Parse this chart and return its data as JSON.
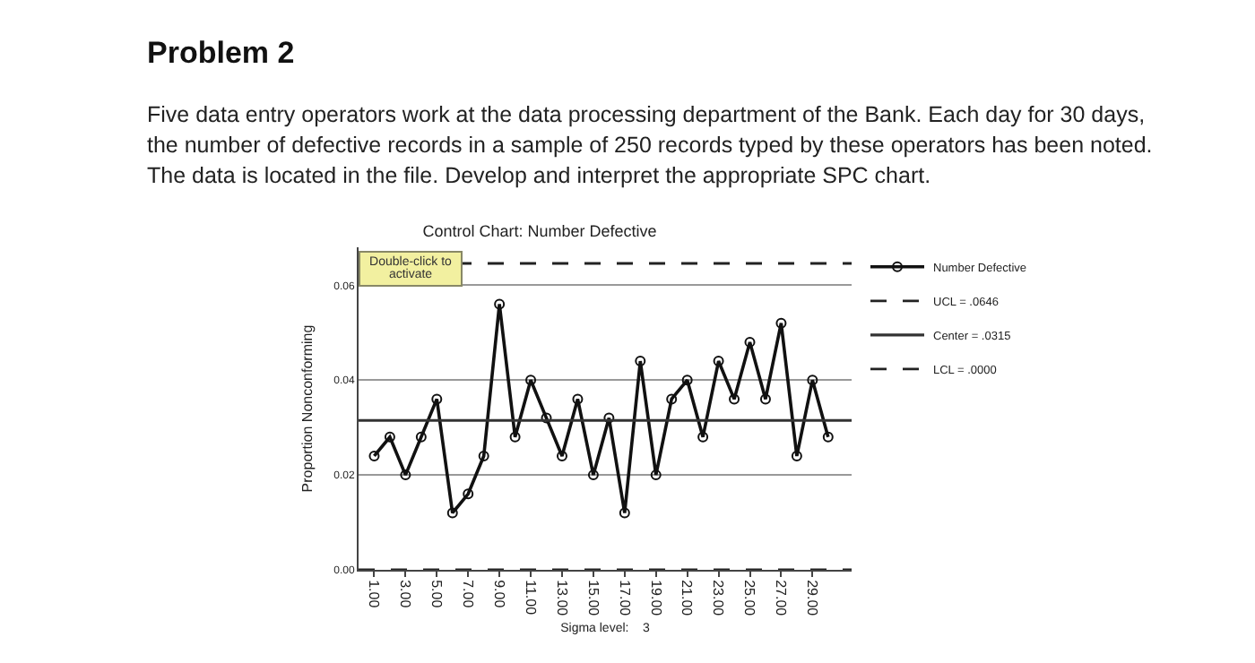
{
  "chart_data": {
    "type": "line",
    "title": "Control Chart: Number Defective",
    "ylabel": "Proportion Nonconforming",
    "xlabel": "Sigma level:    3",
    "annotations": [
      "Problem 2",
      "Five data entry operators work at the data processing department of the Bank. Each day for 30 days, the number of defective records in a sample of 250 records typed by these operators has been noted. The data is located in the file. Develop and interpret the appropriate SPC chart.",
      "Double-click to activate"
    ],
    "x": [
      1,
      2,
      3,
      4,
      5,
      6,
      7,
      8,
      9,
      10,
      11,
      12,
      13,
      14,
      15,
      16,
      17,
      18,
      19,
      20,
      21,
      22,
      23,
      24,
      25,
      26,
      27,
      28,
      29,
      30
    ],
    "series": [
      {
        "name": "Number Defective",
        "color": "#111111",
        "values": [
          0.024,
          0.028,
          0.02,
          0.028,
          0.036,
          0.012,
          0.016,
          0.024,
          0.056,
          0.028,
          0.04,
          0.032,
          0.024,
          0.036,
          0.02,
          0.032,
          0.012,
          0.044,
          0.02,
          0.036,
          0.04,
          0.028,
          0.044,
          0.036,
          0.048,
          0.036,
          0.052,
          0.024,
          0.04,
          0.028
        ]
      }
    ],
    "ref_lines": [
      {
        "axis": "y",
        "value": 0.0646,
        "label": "UCL = .0646",
        "color": "#222222",
        "line_style": "dashed"
      },
      {
        "axis": "y",
        "value": 0.0315,
        "label": "Center = .0315",
        "color": "#333333",
        "line_style": "solid"
      },
      {
        "axis": "y",
        "value": 0,
        "label": "LCL = .0000",
        "color": "#222222",
        "line_style": "dashed"
      }
    ],
    "xlim": [
      0,
      31.5
    ],
    "xticks": [
      {
        "value": 1,
        "label": "1.00"
      },
      {
        "value": 3,
        "label": "3.00"
      },
      {
        "value": 5,
        "label": "5.00"
      },
      {
        "value": 7,
        "label": "7.00"
      },
      {
        "value": 9,
        "label": "9.00"
      },
      {
        "value": 11,
        "label": "11.00"
      },
      {
        "value": 13,
        "label": "13.00"
      },
      {
        "value": 15,
        "label": "15.00"
      },
      {
        "value": 17,
        "label": "17.00"
      },
      {
        "value": 19,
        "label": "19.00"
      },
      {
        "value": 21,
        "label": "21.00"
      },
      {
        "value": 23,
        "label": "23.00"
      },
      {
        "value": 25,
        "label": "25.00"
      },
      {
        "value": 27,
        "label": "27.00"
      },
      {
        "value": 29,
        "label": "29.00"
      }
    ],
    "ylim": [
      0,
      0.068
    ],
    "yticks": [
      {
        "value": 0,
        "label": "0.00"
      },
      {
        "value": 0.02,
        "label": "0.02"
      },
      {
        "value": 0.04,
        "label": "0.04"
      },
      {
        "value": 0.06,
        "label": "0.06"
      }
    ],
    "grid": "y",
    "legend": "top right",
    "marker": "circle",
    "line_style": "solid"
  }
}
